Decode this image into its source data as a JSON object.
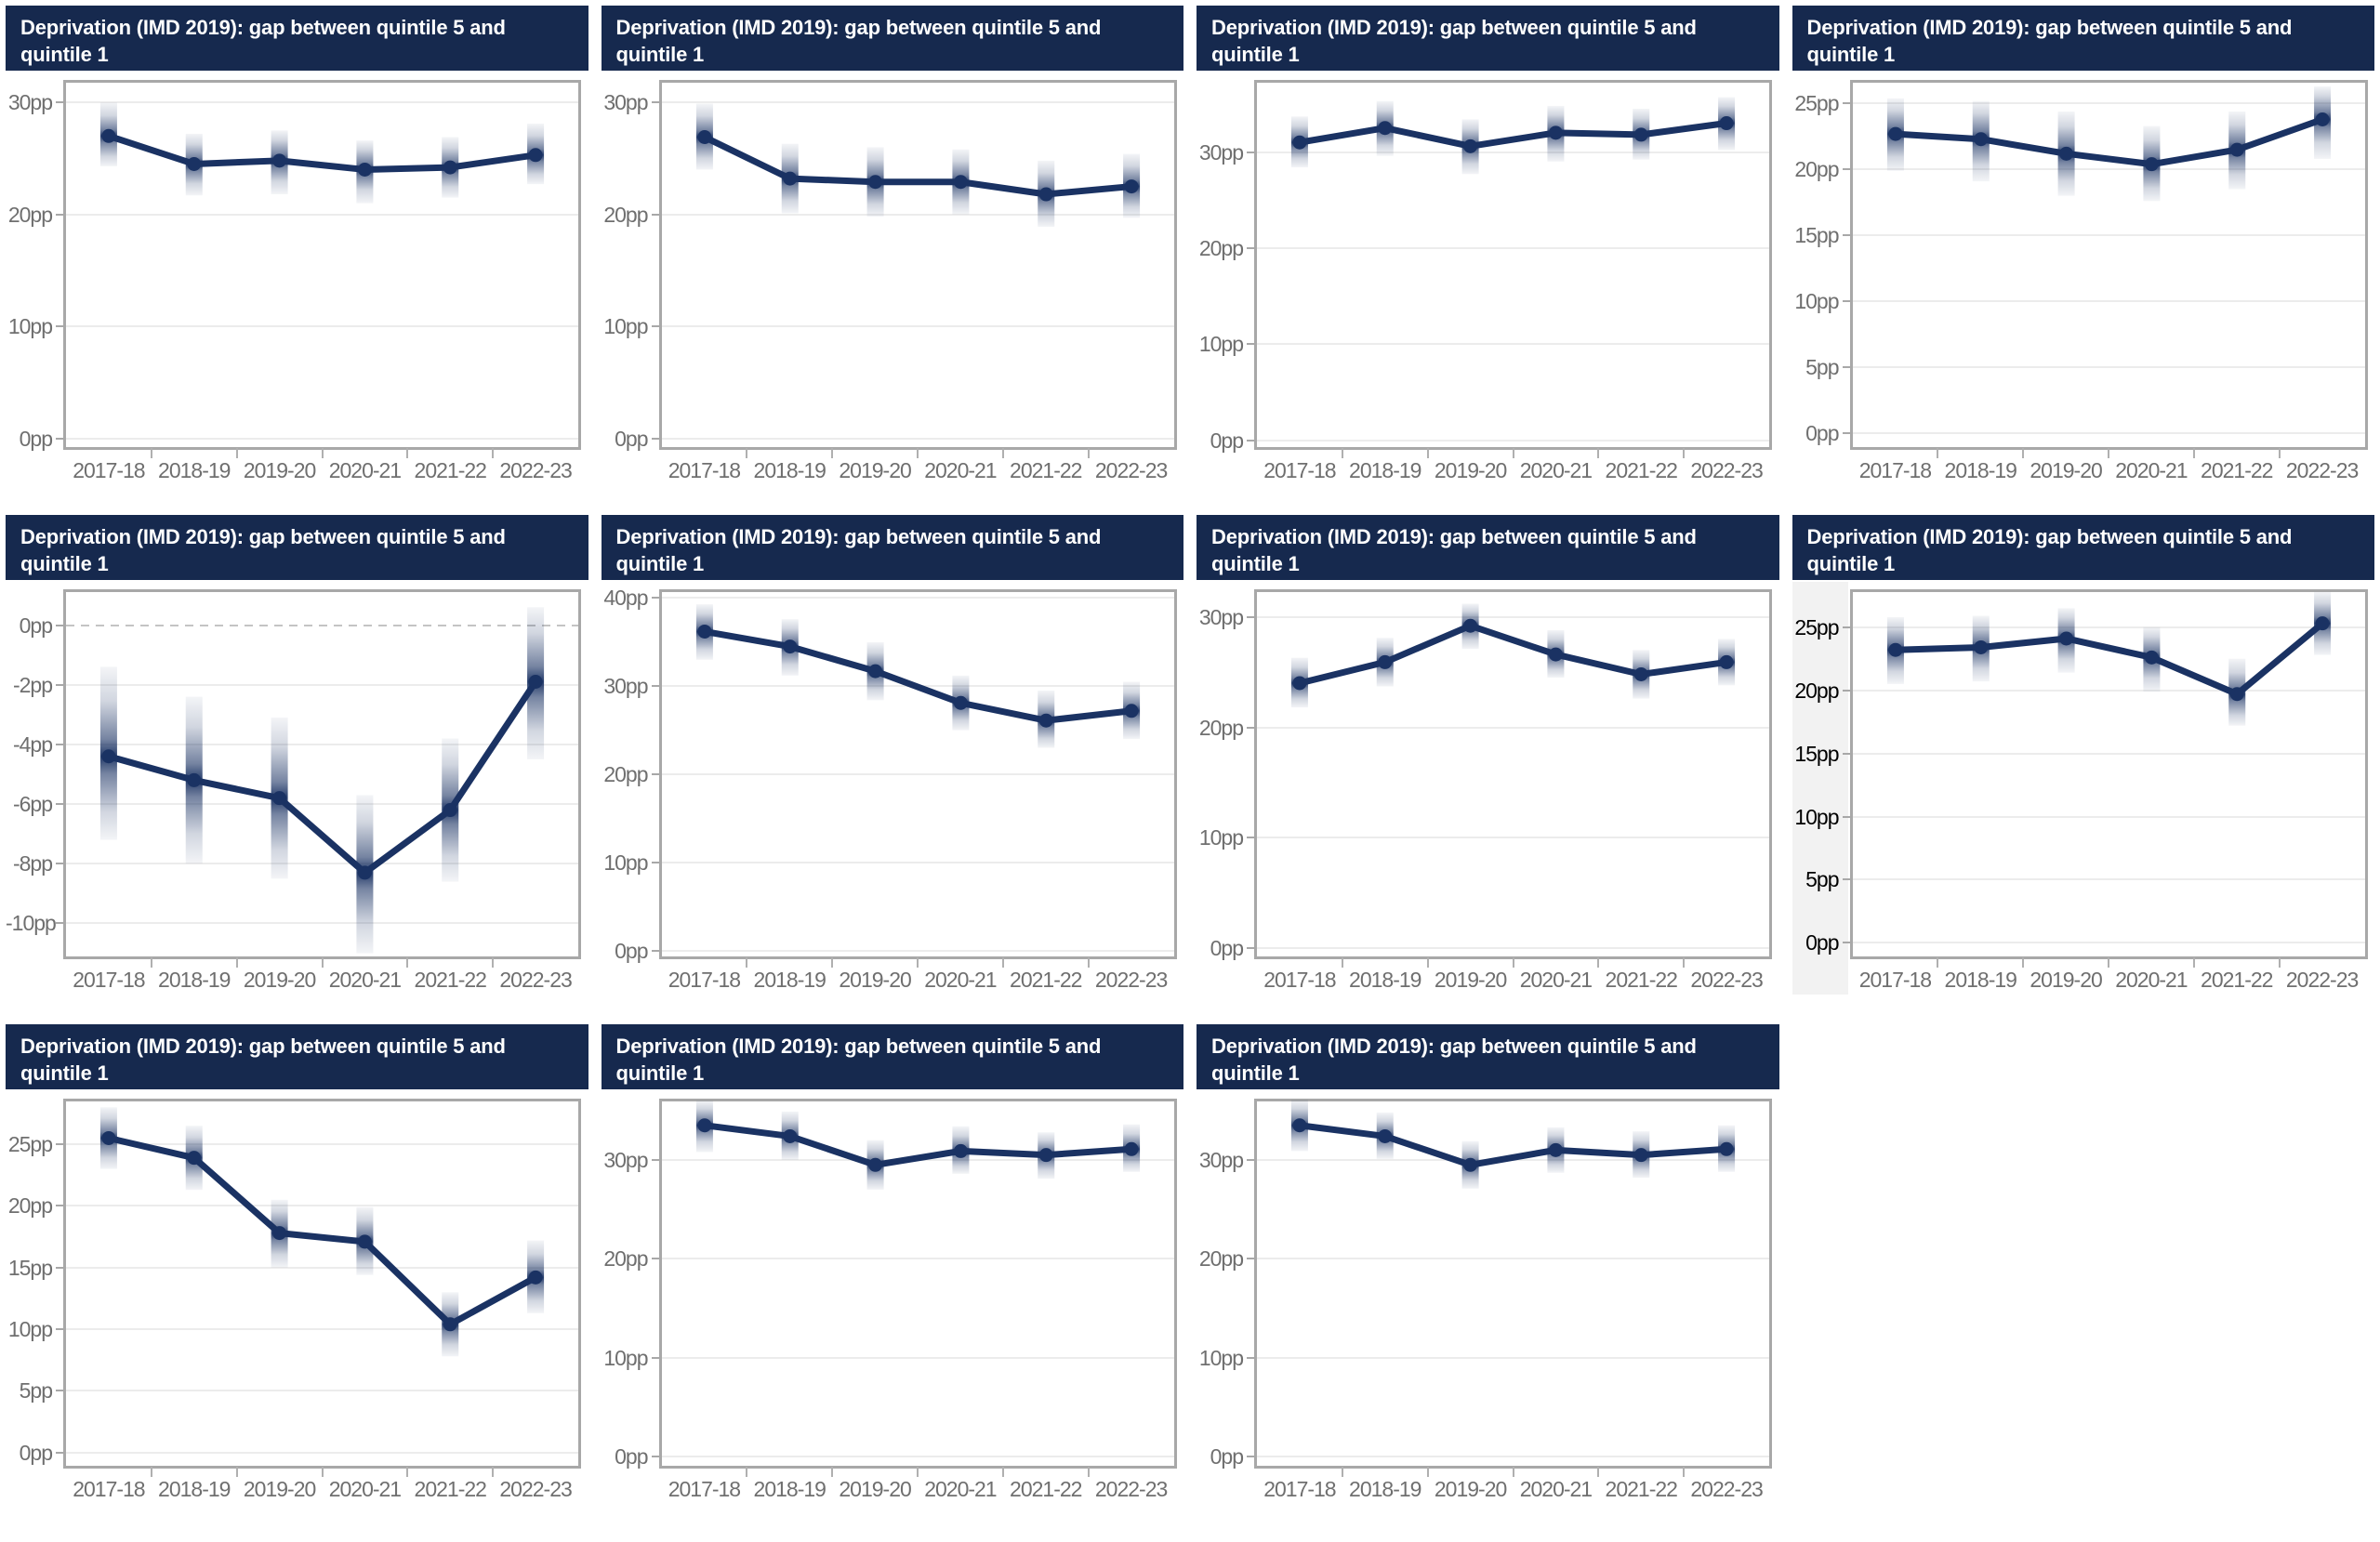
{
  "page": {
    "background": "#ffffff",
    "description": "Grid of small-multiple line charts with confidence bands"
  },
  "colors": {
    "header_bg": "#16294e",
    "header_text": "#ffffff",
    "line": "#1a3263",
    "ci_band": "#1a3263",
    "plot_border": "#a8a8a8",
    "gridline": "#ececec",
    "zero_dash": "#c4c4c4",
    "axis_text": "#6f6f6f",
    "axis_text_highlight": "#000000",
    "axis_highlight_bg": "#f2f2f2"
  },
  "chart_data": [
    {
      "type": "line",
      "title": "Deprivation (IMD 2019): gap between quintile 5 and quintile 1",
      "categories": [
        "2017-18",
        "2018-19",
        "2019-20",
        "2020-21",
        "2021-22",
        "2022-23"
      ],
      "values": [
        27.0,
        24.5,
        24.8,
        24.0,
        24.2,
        25.3
      ],
      "ci_lower": [
        24.3,
        21.7,
        21.8,
        21.0,
        21.5,
        22.7
      ],
      "ci_upper": [
        30.0,
        27.2,
        27.5,
        26.6,
        26.9,
        28.1
      ],
      "y_ticks": [
        30,
        20,
        10,
        0
      ],
      "tick_suffix": "pp",
      "ylim": [
        -1,
        32
      ],
      "zero_line_dashed": false,
      "axis_label_highlight": false,
      "grid": true,
      "legend": "none"
    },
    {
      "type": "line",
      "title": "Deprivation (IMD 2019): gap between quintile 5 and quintile 1",
      "categories": [
        "2017-18",
        "2018-19",
        "2019-20",
        "2020-21",
        "2021-22",
        "2022-23"
      ],
      "values": [
        26.9,
        23.2,
        22.9,
        22.9,
        21.8,
        22.5
      ],
      "ci_lower": [
        24.0,
        20.1,
        19.8,
        20.0,
        18.9,
        19.7
      ],
      "ci_upper": [
        29.9,
        26.3,
        26.0,
        25.8,
        24.8,
        25.4
      ],
      "y_ticks": [
        30,
        20,
        10,
        0
      ],
      "tick_suffix": "pp",
      "ylim": [
        -1,
        32
      ],
      "zero_line_dashed": false,
      "axis_label_highlight": false,
      "grid": true,
      "legend": "none"
    },
    {
      "type": "line",
      "title": "Deprivation (IMD 2019): gap between quintile 5 and quintile 1",
      "categories": [
        "2017-18",
        "2018-19",
        "2019-20",
        "2020-21",
        "2021-22",
        "2022-23"
      ],
      "values": [
        31.0,
        32.5,
        30.6,
        32.0,
        31.8,
        33.0
      ],
      "ci_lower": [
        28.4,
        29.6,
        27.7,
        29.0,
        29.2,
        30.2
      ],
      "ci_upper": [
        33.7,
        35.3,
        33.4,
        34.8,
        34.5,
        35.7
      ],
      "y_ticks": [
        30,
        20,
        10,
        0
      ],
      "tick_suffix": "pp",
      "ylim": [
        -1,
        37.5
      ],
      "zero_line_dashed": false,
      "axis_label_highlight": false,
      "grid": true,
      "legend": "none"
    },
    {
      "type": "line",
      "title": "Deprivation (IMD 2019): gap between quintile 5 and quintile 1",
      "categories": [
        "2017-18",
        "2018-19",
        "2019-20",
        "2020-21",
        "2021-22",
        "2022-23"
      ],
      "values": [
        22.7,
        22.3,
        21.2,
        20.4,
        21.5,
        23.8
      ],
      "ci_lower": [
        19.9,
        19.1,
        18.0,
        17.6,
        18.5,
        20.8
      ],
      "ci_upper": [
        25.4,
        25.2,
        24.4,
        23.3,
        24.4,
        26.3
      ],
      "y_ticks": [
        25,
        20,
        15,
        10,
        5,
        0
      ],
      "tick_suffix": "pp",
      "ylim": [
        -1.3,
        26.8
      ],
      "zero_line_dashed": false,
      "axis_label_highlight": false,
      "grid": true,
      "legend": "none"
    },
    {
      "type": "line",
      "title": "Deprivation (IMD 2019): gap between quintile 5 and quintile 1",
      "categories": [
        "2017-18",
        "2018-19",
        "2019-20",
        "2020-21",
        "2021-22",
        "2022-23"
      ],
      "values": [
        -4.4,
        -5.2,
        -5.8,
        -8.3,
        -6.2,
        -1.9
      ],
      "ci_lower": [
        -7.2,
        -8.0,
        -8.5,
        -11.0,
        -8.6,
        -4.5
      ],
      "ci_upper": [
        -1.4,
        -2.4,
        -3.1,
        -5.7,
        -3.8,
        0.6
      ],
      "y_ticks": [
        0,
        -2,
        -4,
        -6,
        -8,
        -10
      ],
      "tick_suffix": "pp",
      "ylim": [
        -11.2,
        1.2
      ],
      "zero_line_dashed": true,
      "axis_label_highlight": false,
      "grid": true,
      "legend": "none"
    },
    {
      "type": "line",
      "title": "Deprivation (IMD 2019): gap between quintile 5 and quintile 1",
      "categories": [
        "2017-18",
        "2018-19",
        "2019-20",
        "2020-21",
        "2021-22",
        "2022-23"
      ],
      "values": [
        36.2,
        34.5,
        31.7,
        28.1,
        26.1,
        27.2
      ],
      "ci_lower": [
        33.0,
        31.2,
        28.4,
        25.0,
        23.0,
        24.0
      ],
      "ci_upper": [
        39.3,
        37.6,
        35.0,
        31.2,
        29.5,
        30.5
      ],
      "y_ticks": [
        40,
        30,
        20,
        10,
        0
      ],
      "tick_suffix": "pp",
      "ylim": [
        -1,
        41
      ],
      "zero_line_dashed": false,
      "axis_label_highlight": false,
      "grid": true,
      "legend": "none"
    },
    {
      "type": "line",
      "title": "Deprivation (IMD 2019): gap between quintile 5 and quintile 1",
      "categories": [
        "2017-18",
        "2018-19",
        "2019-20",
        "2020-21",
        "2021-22",
        "2022-23"
      ],
      "values": [
        24.0,
        25.9,
        29.2,
        26.6,
        24.8,
        25.9
      ],
      "ci_lower": [
        21.8,
        23.7,
        27.1,
        24.5,
        22.6,
        23.8
      ],
      "ci_upper": [
        26.3,
        28.1,
        31.2,
        28.8,
        27.0,
        28.0
      ],
      "y_ticks": [
        30,
        20,
        10,
        0
      ],
      "tick_suffix": "pp",
      "ylim": [
        -1,
        32.5
      ],
      "zero_line_dashed": false,
      "axis_label_highlight": false,
      "grid": true,
      "legend": "none"
    },
    {
      "type": "line",
      "title": "Deprivation (IMD 2019): gap between quintile 5 and quintile 1",
      "categories": [
        "2017-18",
        "2018-19",
        "2019-20",
        "2020-21",
        "2021-22",
        "2022-23"
      ],
      "values": [
        23.2,
        23.4,
        24.1,
        22.6,
        19.7,
        25.3
      ],
      "ci_lower": [
        20.5,
        20.7,
        21.4,
        19.9,
        17.2,
        22.8
      ],
      "ci_upper": [
        25.8,
        25.9,
        26.5,
        25.0,
        22.5,
        27.8
      ],
      "y_ticks": [
        25,
        20,
        15,
        10,
        5,
        0
      ],
      "tick_suffix": "pp",
      "ylim": [
        -1.3,
        28
      ],
      "zero_line_dashed": false,
      "axis_label_highlight": true,
      "grid": true,
      "legend": "none"
    },
    {
      "type": "line",
      "title": "Deprivation (IMD 2019): gap between quintile 5 and quintile 1",
      "categories": [
        "2017-18",
        "2018-19",
        "2019-20",
        "2020-21",
        "2021-22",
        "2022-23"
      ],
      "values": [
        25.5,
        23.9,
        17.8,
        17.1,
        10.4,
        14.2
      ],
      "ci_lower": [
        23.0,
        21.3,
        15.0,
        14.4,
        7.8,
        11.3
      ],
      "ci_upper": [
        28.0,
        26.5,
        20.5,
        19.9,
        13.0,
        17.2
      ],
      "y_ticks": [
        25,
        20,
        15,
        10,
        5,
        0
      ],
      "tick_suffix": "pp",
      "ylim": [
        -1.3,
        28.7
      ],
      "zero_line_dashed": false,
      "axis_label_highlight": false,
      "grid": true,
      "legend": "none"
    },
    {
      "type": "line",
      "title": "Deprivation (IMD 2019): gap between quintile 5 and quintile 1",
      "categories": [
        "2017-18",
        "2018-19",
        "2019-20",
        "2020-21",
        "2021-22",
        "2022-23"
      ],
      "values": [
        33.5,
        32.4,
        29.5,
        30.9,
        30.5,
        31.1
      ],
      "ci_lower": [
        30.8,
        30.0,
        27.0,
        28.6,
        28.1,
        28.8
      ],
      "ci_upper": [
        36.0,
        34.9,
        32.0,
        33.4,
        32.8,
        33.6
      ],
      "y_ticks": [
        30,
        20,
        10,
        0
      ],
      "tick_suffix": "pp",
      "ylim": [
        -1.2,
        36.2
      ],
      "zero_line_dashed": false,
      "axis_label_highlight": false,
      "grid": true,
      "legend": "none"
    },
    {
      "type": "line",
      "title": "Deprivation (IMD 2019): gap between quintile 5 and quintile 1",
      "categories": [
        "2017-18",
        "2018-19",
        "2019-20",
        "2020-21",
        "2021-22",
        "2022-23"
      ],
      "values": [
        33.5,
        32.4,
        29.5,
        31.0,
        30.5,
        31.1
      ],
      "ci_lower": [
        30.9,
        30.1,
        27.1,
        28.7,
        28.2,
        28.8
      ],
      "ci_upper": [
        36.1,
        34.8,
        31.9,
        33.3,
        32.9,
        33.5
      ],
      "y_ticks": [
        30,
        20,
        10,
        0
      ],
      "tick_suffix": "pp",
      "ylim": [
        -1.2,
        36.2
      ],
      "zero_line_dashed": false,
      "axis_label_highlight": false,
      "grid": true,
      "legend": "none"
    }
  ]
}
